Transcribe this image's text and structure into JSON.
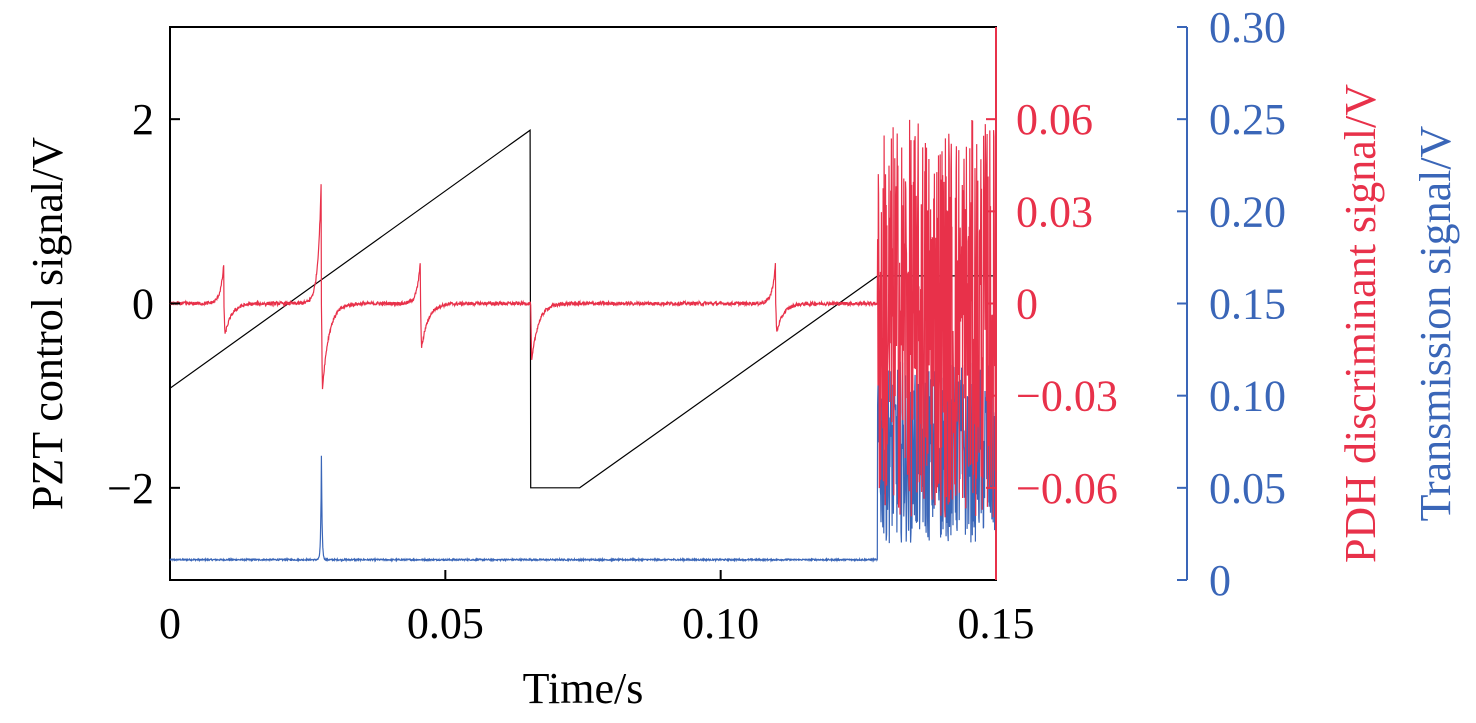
{
  "chart_data": {
    "type": "line",
    "xlabel": "Time/s",
    "xlim": [
      0,
      0.15
    ],
    "x_ticks": [
      {
        "value": 0,
        "label": "0"
      },
      {
        "value": 0.05,
        "label": "0.05"
      },
      {
        "value": 0.1,
        "label": "0.10"
      },
      {
        "value": 0.15,
        "label": "0.15"
      }
    ],
    "axes": {
      "left": {
        "label": "PZT control signal/V",
        "color": "#000000",
        "ylim": [
          -3,
          3
        ],
        "ticks": [
          {
            "value": 2,
            "label": "2"
          },
          {
            "value": 0,
            "label": "0"
          },
          {
            "value": -2,
            "label": "−2"
          }
        ]
      },
      "right1": {
        "label": "PDH discriminant signal/V",
        "color": "#e8314a",
        "ylim": [
          -0.09,
          0.09
        ],
        "ticks": [
          {
            "value": 0.06,
            "label": "0.06"
          },
          {
            "value": 0.03,
            "label": "0.03"
          },
          {
            "value": 0,
            "label": "0"
          },
          {
            "value": -0.03,
            "label": "−0.03"
          },
          {
            "value": -0.06,
            "label": "−0.06"
          }
        ]
      },
      "right2": {
        "label": "Transmission signal/V",
        "color": "#3a66b8",
        "ylim": [
          0,
          0.3
        ],
        "ticks": [
          {
            "value": 0,
            "label": "0"
          },
          {
            "value": 0.05,
            "label": "0.05"
          },
          {
            "value": 0.1,
            "label": "0.10"
          },
          {
            "value": 0.15,
            "label": "0.15"
          },
          {
            "value": 0.2,
            "label": "0.20"
          },
          {
            "value": 0.25,
            "label": "0.25"
          },
          {
            "value": 0.3,
            "label": "0.30"
          }
        ]
      }
    },
    "series": [
      {
        "axis": "left",
        "color": "#000000",
        "x": [
          0,
          0.0654,
          0.0655,
          0.0744,
          0.1285,
          0.15
        ],
        "y": [
          -0.92,
          1.88,
          -2.0,
          -2.0,
          0.3,
          0.3
        ]
      },
      {
        "axis": "right1",
        "color": "#e8314a",
        "baseline": 0,
        "resonances": [
          {
            "x": 0.0098,
            "peak": 0.0135,
            "trough": -0.012
          },
          {
            "x": 0.0275,
            "peak": 0.0425,
            "trough": -0.0325
          },
          {
            "x": 0.0455,
            "peak": 0.0145,
            "trough": -0.017
          },
          {
            "x": 0.0655,
            "peak": 0.0,
            "trough": -0.022
          },
          {
            "x": 0.11,
            "peak": 0.014,
            "trough": -0.011
          }
        ],
        "locked_after_x": 0.1285,
        "locked_range": [
          -0.07,
          0.06
        ]
      },
      {
        "axis": "right2",
        "color": "#3a66b8",
        "baseline": 0.011,
        "resonances": [
          {
            "x": 0.0275,
            "peak": 0.067
          }
        ],
        "locked_after_x": 0.1285,
        "locked_range": [
          0.02,
          0.12
        ]
      }
    ]
  }
}
